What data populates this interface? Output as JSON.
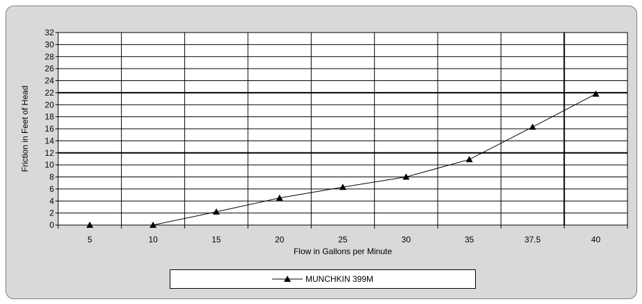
{
  "chart_data": {
    "type": "line",
    "title": "",
    "xlabel": "Flow in Gallons per Minute",
    "ylabel": "Friction in Feet of Head",
    "categories": [
      "5",
      "10",
      "15",
      "20",
      "25",
      "30",
      "35",
      "37.5",
      "40"
    ],
    "ylim": [
      0,
      32
    ],
    "yticks": [
      0,
      2,
      4,
      6,
      8,
      10,
      12,
      14,
      16,
      18,
      20,
      22,
      24,
      26,
      28,
      30,
      32
    ],
    "grid": true,
    "legend": "bottom",
    "series": [
      {
        "name": "MUNCHKIN 399M",
        "marker": "triangle",
        "color": "#000000",
        "values": [
          0,
          0,
          2.2,
          4.5,
          6.3,
          8.0,
          10.9,
          16.3,
          21.8
        ]
      }
    ]
  }
}
